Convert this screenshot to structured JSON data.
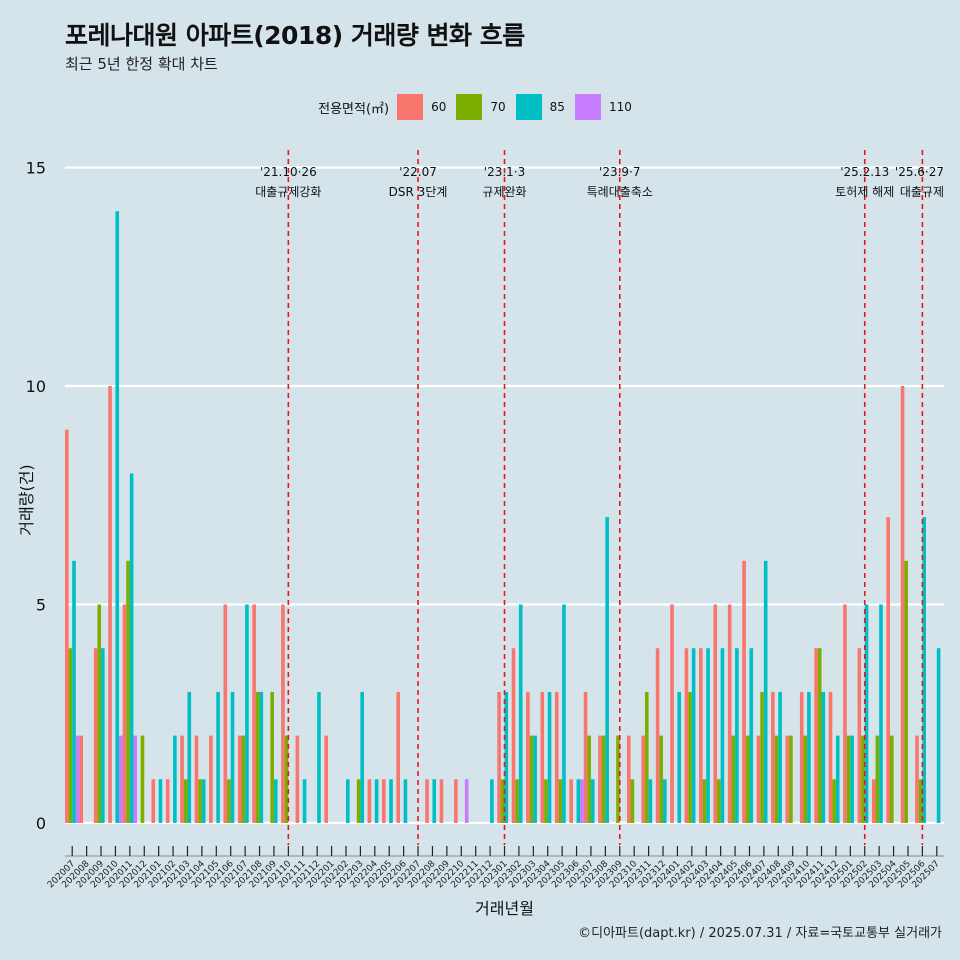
{
  "title": "포레나대원 아파트(2018) 거래량 변화 흐름",
  "subtitle": "최근 5년 한정 확대 차트",
  "caption": "©디아파트(dapt.kr) / 2025.07.31 / 자료=국토교통부 실거래가",
  "legend": {
    "title": "전용면적(㎡)",
    "items": [
      {
        "label": "60",
        "color": "#f8766d"
      },
      {
        "label": "70",
        "color": "#7cae00"
      },
      {
        "label": "85",
        "color": "#00bfc4"
      },
      {
        "label": "110",
        "color": "#c77cff"
      }
    ]
  },
  "chart_data": {
    "type": "bar",
    "title": "포레나대원 아파트(2018) 거래량 변화 흐름",
    "xlabel": "거래년월",
    "ylabel": "거래량(건)",
    "ylim": [
      0,
      15
    ],
    "yticks": [
      0,
      5,
      10,
      15
    ],
    "categories": [
      "202007",
      "202008",
      "202009",
      "202010",
      "202011",
      "202012",
      "202101",
      "202102",
      "202103",
      "202104",
      "202105",
      "202106",
      "202107",
      "202108",
      "202109",
      "202110",
      "202111",
      "202112",
      "202201",
      "202202",
      "202203",
      "202204",
      "202205",
      "202206",
      "202207",
      "202208",
      "202209",
      "202210",
      "202211",
      "202212",
      "202301",
      "202302",
      "202303",
      "202304",
      "202305",
      "202306",
      "202307",
      "202308",
      "202309",
      "202310",
      "202311",
      "202312",
      "202401",
      "202402",
      "202403",
      "202404",
      "202405",
      "202406",
      "202407",
      "202408",
      "202409",
      "202410",
      "202411",
      "202412",
      "202501",
      "202502",
      "202503",
      "202504",
      "202505",
      "202506",
      "202507"
    ],
    "series": [
      {
        "name": "60",
        "color": "#f8766d",
        "values": [
          9,
          2,
          4,
          10,
          5,
          0,
          1,
          1,
          2,
          2,
          2,
          5,
          2,
          5,
          0,
          5,
          2,
          0,
          2,
          0,
          0,
          1,
          1,
          3,
          0,
          1,
          1,
          1,
          0,
          0,
          3,
          4,
          3,
          3,
          3,
          1,
          3,
          2,
          0,
          2,
          2,
          4,
          5,
          4,
          4,
          5,
          5,
          6,
          2,
          3,
          2,
          3,
          4,
          3,
          5,
          4,
          1,
          7,
          10,
          2,
          0
        ]
      },
      {
        "name": "70",
        "color": "#7cae00",
        "values": [
          4,
          0,
          5,
          0,
          6,
          2,
          0,
          0,
          1,
          1,
          0,
          1,
          2,
          3,
          3,
          2,
          0,
          0,
          0,
          0,
          1,
          0,
          0,
          0,
          0,
          0,
          0,
          0,
          0,
          0,
          1,
          1,
          2,
          1,
          1,
          0,
          2,
          2,
          2,
          1,
          3,
          2,
          0,
          3,
          1,
          1,
          2,
          2,
          3,
          2,
          2,
          2,
          4,
          1,
          2,
          2,
          2,
          2,
          6,
          1,
          0
        ]
      },
      {
        "name": "85",
        "color": "#00bfc4",
        "values": [
          6,
          0,
          4,
          14,
          8,
          0,
          1,
          2,
          3,
          1,
          3,
          3,
          5,
          3,
          1,
          0,
          1,
          3,
          0,
          1,
          3,
          1,
          1,
          1,
          0,
          1,
          0,
          0,
          0,
          1,
          3,
          5,
          2,
          3,
          5,
          1,
          1,
          7,
          0,
          0,
          1,
          1,
          3,
          4,
          4,
          4,
          4,
          4,
          6,
          3,
          0,
          3,
          3,
          2,
          2,
          5,
          5,
          0,
          0,
          7,
          4
        ]
      },
      {
        "name": "110",
        "color": "#c77cff",
        "values": [
          2,
          0,
          0,
          2,
          2,
          0,
          0,
          0,
          0,
          0,
          0,
          0,
          0,
          0,
          0,
          0,
          0,
          0,
          0,
          0,
          0,
          0,
          0,
          0,
          0,
          0,
          0,
          1,
          0,
          0,
          0,
          0,
          0,
          0,
          0,
          1,
          0,
          0,
          0,
          0,
          0,
          0,
          0,
          0,
          0,
          0,
          0,
          0,
          0,
          0,
          0,
          0,
          0,
          0,
          0,
          0,
          0,
          0,
          0,
          0,
          0
        ]
      }
    ],
    "events": [
      {
        "category": "202110",
        "date": "'21.10·26",
        "label": "대출규제강화"
      },
      {
        "category": "202207",
        "date": "'22.07",
        "label": "DSR 3단계"
      },
      {
        "category": "202301",
        "date": "'23.1·3",
        "label": "규제완화"
      },
      {
        "category": "202309",
        "date": "'23.9·7",
        "label": "특례대출축소"
      },
      {
        "category": "202502",
        "date": "'25.2.13",
        "label": "토허제 해제"
      },
      {
        "category": "202506",
        "date": "'25.6·27",
        "label": "대출규제"
      }
    ]
  }
}
